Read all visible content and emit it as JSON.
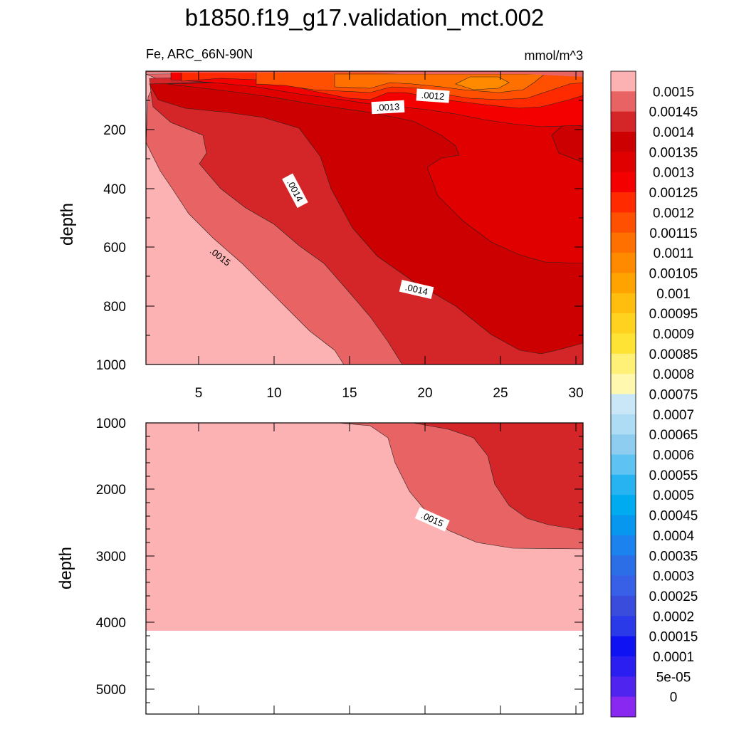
{
  "title": "b1850.f19_g17.validation_mct.002",
  "chart_data": [
    {
      "type": "contour",
      "panel": "upper",
      "variable": "Fe",
      "region": "ARC_66N-90N",
      "left_label": "Fe, ARC_66N-90N",
      "right_label": "mmol/m^3",
      "xlabel": "",
      "ylabel": "depth",
      "xlim": [
        1.5,
        30.5
      ],
      "ylim": [
        1000,
        0
      ],
      "x_ticks": [
        "5",
        "10",
        "15",
        "20",
        "25",
        "30"
      ],
      "y_ticks": [
        "200",
        "400",
        "600",
        "800",
        "1000"
      ],
      "contour_labels": [
        ".0012",
        ".0013",
        ".0014",
        ".0014",
        ".0015"
      ],
      "fill_levels_present": [
        0.00105,
        0.0011,
        0.00115,
        0.0012,
        0.00125,
        0.0013,
        0.00135,
        0.0014,
        0.00145,
        0.0015
      ]
    },
    {
      "type": "contour",
      "panel": "lower",
      "variable": "Fe",
      "region": "ARC_66N-90N",
      "xlabel": "",
      "ylabel": "depth",
      "xlim": [
        1.5,
        30.5
      ],
      "ylim": [
        5400,
        1000
      ],
      "y_ticks": [
        "1000",
        "2000",
        "3000",
        "4000",
        "5000"
      ],
      "contour_labels": [
        ".0015"
      ],
      "data_bottom_depth": 4100,
      "fill_levels_present": [
        0.0014,
        0.00145,
        0.0015
      ]
    }
  ],
  "colorbar": {
    "labels": [
      "0.0015",
      "0.00145",
      "0.0014",
      "0.00135",
      "0.0013",
      "0.00125",
      "0.0012",
      "0.00115",
      "0.0011",
      "0.00105",
      "0.001",
      "0.00095",
      "0.0009",
      "0.00085",
      "0.0008",
      "0.00075",
      "0.0007",
      "0.00065",
      "0.0006",
      "0.00055",
      "0.0005",
      "0.00045",
      "0.0004",
      "0.00035",
      "0.0003",
      "0.00025",
      "0.0002",
      "0.00015",
      "0.0001",
      "5e-05",
      "0"
    ],
    "colors_top_to_bottom": [
      "#fcb1b3",
      "#e86464",
      "#d42628",
      "#cc0000",
      "#e00000",
      "#f50000",
      "#ff2a00",
      "#ff4f00",
      "#ff7000",
      "#ff8a00",
      "#ffa300",
      "#ffbe0d",
      "#ffd21f",
      "#ffe334",
      "#fff178",
      "#fff8ae",
      "#c9e7f7",
      "#aedcf4",
      "#8fcdf0",
      "#5ec2f2",
      "#27b3f2",
      "#00acef",
      "#0897ef",
      "#1c82ee",
      "#2c6ee6",
      "#3760e6",
      "#3a4cdc",
      "#2a3ae8",
      "#0f12f3",
      "#2a1ef0",
      "#4f24ef",
      "#8928f0"
    ]
  }
}
